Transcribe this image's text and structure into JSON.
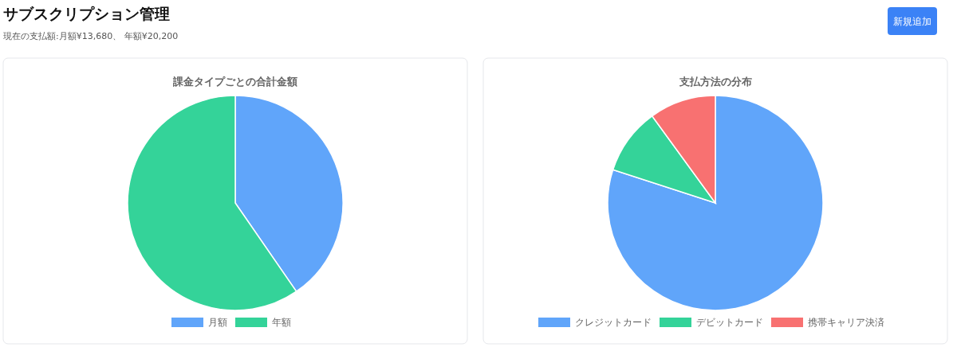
{
  "chart_data": [
    {
      "type": "other",
      "title": "サブスクリプション管理",
      "subtitle": "現在の支払額:月額¥13,680、 年額¥20,200",
      "annotations": [
        "新規追加"
      ]
    },
    {
      "type": "pie",
      "title": "課金タイプごとの合計金額",
      "categories": [
        "月額",
        "年額"
      ],
      "values": [
        40.4,
        59.6
      ],
      "colors": [
        "#60a5fa",
        "#34d399"
      ],
      "legend": "bottom"
    },
    {
      "type": "pie",
      "title": "支払方法の分布",
      "categories": [
        "クレジットカード",
        "デビットカード",
        "携帯キャリア決済"
      ],
      "values": [
        80,
        10,
        10
      ],
      "colors": [
        "#60a5fa",
        "#34d399",
        "#f87171"
      ],
      "legend": "bottom"
    }
  ]
}
